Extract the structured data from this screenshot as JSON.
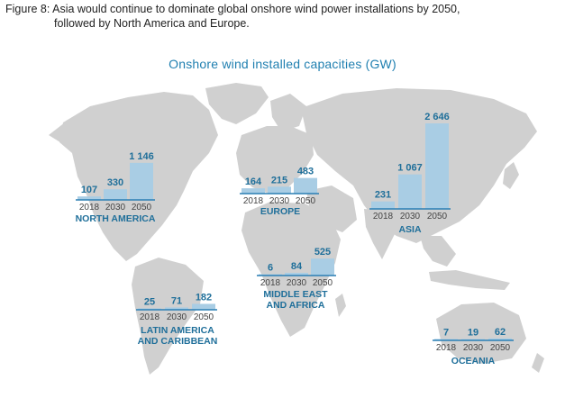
{
  "figure_title": {
    "line1": "Figure 8: Asia would continue to dominate global onshore wind power installations by 2050,",
    "line2": "followed by North America and Europe."
  },
  "chart_data": {
    "type": "bar",
    "title": "Onshore wind installed capacities (GW)",
    "categories": [
      "2018",
      "2030",
      "2050"
    ],
    "series": [
      {
        "name": "NORTH AMERICA",
        "values": [
          107,
          330,
          1146
        ],
        "labels": [
          "107",
          "330",
          "1 146"
        ]
      },
      {
        "name": "EUROPE",
        "values": [
          164,
          215,
          483
        ],
        "labels": [
          "164",
          "215",
          "483"
        ]
      },
      {
        "name": "ASIA",
        "values": [
          231,
          1067,
          2646
        ],
        "labels": [
          "231",
          "1 067",
          "2 646"
        ]
      },
      {
        "name": "MIDDLE EAST AND AFRICA",
        "values": [
          6,
          84,
          525
        ],
        "labels": [
          "6",
          "84",
          "525"
        ]
      },
      {
        "name": "LATIN AMERICA AND CARIBBEAN",
        "values": [
          25,
          71,
          182
        ],
        "labels": [
          "25",
          "71",
          "182"
        ]
      },
      {
        "name": "OCEANIA",
        "values": [
          7,
          19,
          62
        ],
        "labels": [
          "7",
          "19",
          "62"
        ]
      }
    ],
    "colors": {
      "bar": "#a9cde4",
      "baseline": "#2a7fb4",
      "label": "#1f6f9a",
      "land": "#d0d0d0"
    }
  }
}
